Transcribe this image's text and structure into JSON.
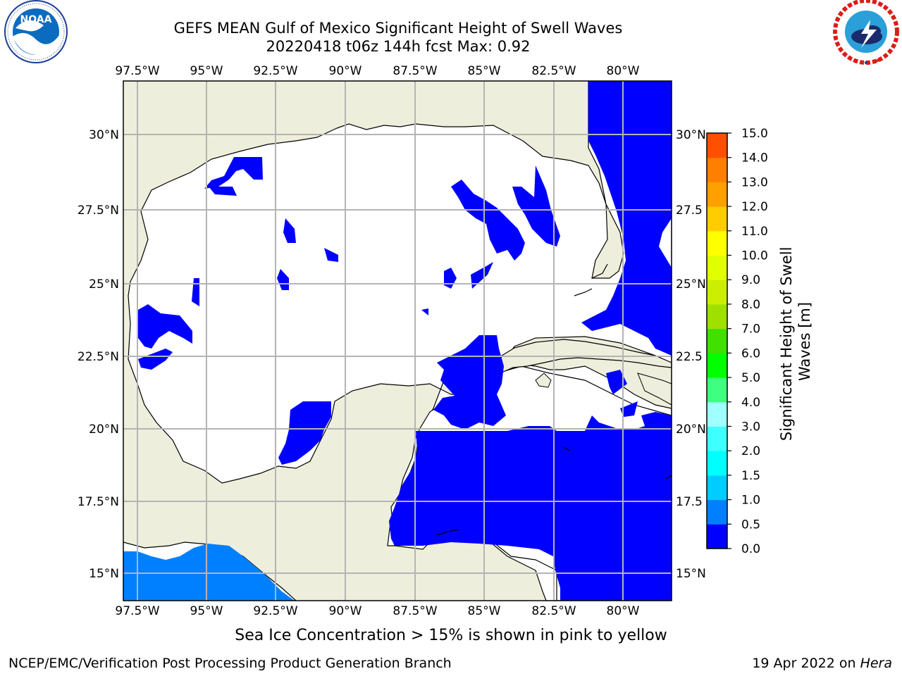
{
  "title": {
    "line1": "GEFS MEAN Gulf of Mexico Significant Height of Swell Waves",
    "line2": "20220418 t06z 144h fcst   Max: 0.92"
  },
  "logos": {
    "left": {
      "name": "NOAA",
      "text": "NOAA",
      "ring_text": "NATIONAL OCEANIC AND ATMOSPHERIC ADMINISTRATION · U.S. DEPARTMENT OF COMMERCE"
    },
    "right": {
      "name": "National Weather Service",
      "ring_text": "NATIONAL WEATHER SERVICE"
    }
  },
  "map": {
    "lon_range": [
      -98.5,
      -78.5
    ],
    "lat_range": [
      14,
      31.7
    ],
    "lon_ticks": [
      -97.5,
      -95,
      -92.5,
      -90,
      -87.5,
      -85,
      -82.5,
      -80
    ],
    "lon_labels": [
      "97.5°W",
      "95°W",
      "92.5°W",
      "90°W",
      "87.5°W",
      "85°W",
      "82.5°W",
      "80°W"
    ],
    "lat_ticks": [
      15,
      17.5,
      20,
      22.5,
      25,
      27.5,
      30
    ],
    "lat_labels": [
      "15°N",
      "17.5°N",
      "20°N",
      "22.5°N",
      "25°N",
      "27.5°N",
      "30°N"
    ],
    "right_lat_labels": [
      "15°N",
      "17.5",
      "20°N",
      "22.5",
      "25°N",
      "27.5",
      "30°N"
    ],
    "colors": {
      "land": "#eeeedc",
      "ocean": "#ffffff",
      "grid": "#b4b4b4"
    }
  },
  "colorbar": {
    "label": "Significant Height of Swell Waves [m]",
    "label_line1": "Significant Height of Swell",
    "label_line2": "Waves [m]",
    "levels": [
      "0.0",
      "0.5",
      "1.0",
      "1.5",
      "2.0",
      "3.0",
      "4.0",
      "5.0",
      "6.0",
      "7.0",
      "8.0",
      "9.0",
      "10.0",
      "11.0",
      "12.0",
      "13.0",
      "14.0",
      "15.0"
    ],
    "colors": [
      "#0000ff",
      "#0080ff",
      "#00ccff",
      "#00ffff",
      "#40ffff",
      "#a0ffff",
      "#40ff80",
      "#00ff00",
      "#40e000",
      "#a0e000",
      "#ccee00",
      "#e0ff00",
      "#ffff00",
      "#ffcc00",
      "#ffa000",
      "#ff8000",
      "#ff5000",
      "#ff2000",
      "#ff0000"
    ]
  },
  "note": "Sea Ice Concentration > 15% is shown in pink to yellow",
  "footer": {
    "left": "NCEP/EMC/Verification Post Processing Product Generation Branch",
    "right_prefix": "19 Apr 2022 on ",
    "right_host": "Hera"
  }
}
